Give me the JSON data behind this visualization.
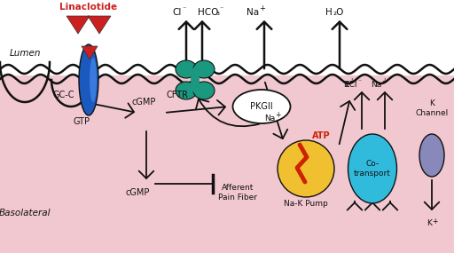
{
  "bg_pink": "#f2c8d0",
  "lumen_bg": "#ffffff",
  "gcc_blue": "#1a5abf",
  "cftr_teal": "#1a9980",
  "triangle_red": "#cc2020",
  "pkgii_fill": "#ffffff",
  "na_k_pump_yellow": "#f0c030",
  "lightning_red": "#cc2200",
  "cotransport_cyan": "#30bbdd",
  "k_channel_purple": "#8888bb",
  "arrow_color": "#111111",
  "labels": {
    "linaclotide": "Linaclotide",
    "lumen": "Lumen",
    "basolateral": "Basolateral",
    "gcc": "GC-C",
    "cftr": "CFTR",
    "gtp": "GTP",
    "cgmp1": "cGMP",
    "pkgii": "PKGII",
    "cgmp2": "cGMP",
    "afferent": "Afferent\nPain Fiber",
    "atp": "ATP",
    "na_pump_label": "Na-K Pump",
    "cotransport": "Co-\ntransport",
    "k_channel": "K\nChannel"
  }
}
